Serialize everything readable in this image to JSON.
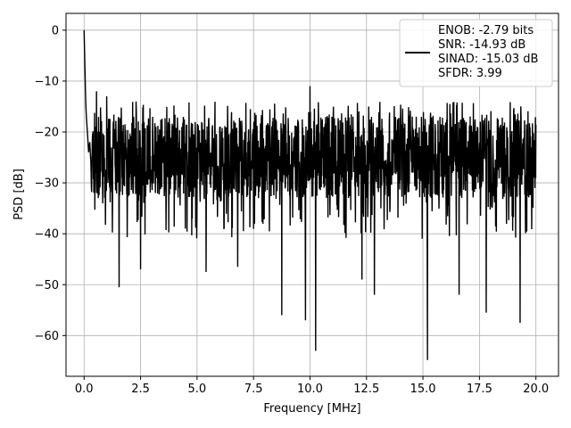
{
  "chart_data": {
    "type": "line",
    "title": "",
    "xlabel": "Frequency [MHz]",
    "ylabel": "PSD [dB]",
    "xlim": [
      -0.8,
      21.0
    ],
    "ylim": [
      -68,
      3.3
    ],
    "xticks": [
      0.0,
      2.5,
      5.0,
      7.5,
      10.0,
      12.5,
      15.0,
      17.5,
      20.0
    ],
    "xtick_labels": [
      "0.0",
      "2.5",
      "5.0",
      "7.5",
      "10.0",
      "12.5",
      "15.0",
      "17.5",
      "20.0"
    ],
    "yticks": [
      0,
      -10,
      -20,
      -30,
      -40,
      -50,
      -60
    ],
    "ytick_labels": [
      "0",
      "−10",
      "−20",
      "−30",
      "−40",
      "−50",
      "−60"
    ],
    "grid": true,
    "legend_position": "top-right",
    "series": [
      {
        "name": "ENOB: -2.79 bits\nSNR: -14.93 dB\nSINAD: -15.03 dB\nSFDR: 3.99",
        "legend_lines": [
          "ENOB: -2.79 bits",
          "SNR: -14.93 dB",
          "SINAD: -15.03 dB",
          "SFDR: 3.99"
        ],
        "color": "#000000",
        "description": "noise-like PSD trace, approx 2000 points from 0 to 20 MHz; envelope below",
        "x_range": [
          0.0,
          20.0
        ],
        "head": {
          "x": [
            0.0,
            0.02,
            0.04,
            0.06,
            0.08,
            0.1,
            0.13,
            0.16,
            0.2,
            0.25,
            0.3
          ],
          "y": [
            0,
            -4,
            -8,
            -12,
            -15,
            -17,
            -19,
            -21,
            -24,
            -22,
            -26
          ]
        },
        "typical_band": {
          "upper": -17,
          "lower": -33,
          "median": -26
        },
        "peaks": [
          {
            "x": 0.55,
            "y": -12
          },
          {
            "x": 1.0,
            "y": -13
          },
          {
            "x": 2.3,
            "y": -14
          },
          {
            "x": 10.0,
            "y": -11
          },
          {
            "x": 12.6,
            "y": -15
          }
        ],
        "dips": [
          {
            "x": 1.55,
            "y": -50.5
          },
          {
            "x": 2.5,
            "y": -47
          },
          {
            "x": 5.4,
            "y": -47.5
          },
          {
            "x": 6.8,
            "y": -46.5
          },
          {
            "x": 8.75,
            "y": -56
          },
          {
            "x": 9.8,
            "y": -57
          },
          {
            "x": 10.25,
            "y": -63
          },
          {
            "x": 12.3,
            "y": -49
          },
          {
            "x": 12.85,
            "y": -52
          },
          {
            "x": 15.2,
            "y": -64.8
          },
          {
            "x": 16.6,
            "y": -52
          },
          {
            "x": 17.8,
            "y": -55.5
          },
          {
            "x": 19.3,
            "y": -57.5
          }
        ]
      }
    ]
  }
}
